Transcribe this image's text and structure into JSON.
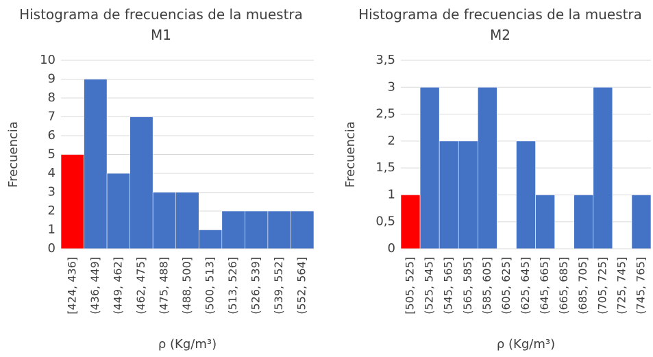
{
  "chart_data": [
    {
      "type": "bar",
      "title": "Histograma de frecuencias de la muestra M1",
      "categories": [
        "[424, 436]",
        "(436, 449]",
        "(449, 462]",
        "(462, 475]",
        "(475, 488]",
        "(488, 500]",
        "(500, 513]",
        "(513, 526]",
        "(526, 539]",
        "(539, 552]",
        "(552, 564]"
      ],
      "values": [
        5,
        9,
        4,
        7,
        3,
        3,
        1,
        2,
        2,
        2,
        2
      ],
      "colors": [
        "#ff0000",
        "#4472c4",
        "#4472c4",
        "#4472c4",
        "#4472c4",
        "#4472c4",
        "#4472c4",
        "#4472c4",
        "#4472c4",
        "#4472c4",
        "#4472c4"
      ],
      "ylim": [
        0,
        10
      ],
      "yticks": [
        0,
        1,
        2,
        3,
        4,
        5,
        6,
        7,
        8,
        9,
        10
      ],
      "grid": true,
      "y_label": "Frecuencia",
      "x_label": "ρ (Kg/m³)"
    },
    {
      "type": "bar",
      "title": "Histograma de frecuencias de la muestra M2",
      "categories": [
        "[505, 525]",
        "(525, 545]",
        "(545, 565]",
        "(565, 585]",
        "(585, 605]",
        "(605, 625]",
        "(625, 645]",
        "(645, 665]",
        "(665, 685]",
        "(685, 705]",
        "(705, 725]",
        "(725, 745]",
        "(745, 765]"
      ],
      "values": [
        1,
        3,
        2,
        2,
        3,
        0,
        2,
        1,
        0,
        1,
        3,
        0,
        1
      ],
      "colors": [
        "#ff0000",
        "#4472c4",
        "#4472c4",
        "#4472c4",
        "#4472c4",
        "#4472c4",
        "#4472c4",
        "#4472c4",
        "#4472c4",
        "#4472c4",
        "#4472c4",
        "#4472c4",
        "#4472c4"
      ],
      "ylim": [
        0,
        3.5
      ],
      "yticks": [
        0,
        {
          "value": 0.5,
          "label": "0,5"
        },
        1,
        {
          "value": 1.5,
          "label": "1,5"
        },
        2,
        {
          "value": 2.5,
          "label": "2,5"
        },
        3,
        {
          "value": 3.5,
          "label": "3,5"
        }
      ],
      "grid": true,
      "y_label": "Frecuencia",
      "x_label": "ρ (Kg/m³)"
    }
  ]
}
